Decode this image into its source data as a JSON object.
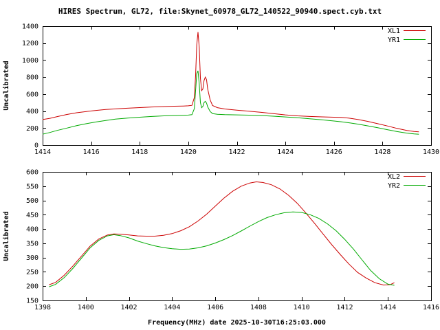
{
  "header": {
    "title": "HIRES Spectrum, GL72, file:Skynet_60978_GL72_140522_90940.spect.cyb.txt"
  },
  "colors": {
    "background": "#ffffff",
    "axis": "#000000",
    "xl": "#cc0000",
    "yr": "#00aa00"
  },
  "chart_data": [
    {
      "type": "line",
      "ylabel": "Uncalibrated",
      "xlim": [
        1414,
        1430
      ],
      "ylim": [
        0,
        1400
      ],
      "xtick_step": 2,
      "ytick_step": 200,
      "grid": false,
      "legend_position": "top-right",
      "series": [
        {
          "name": "XL1",
          "color": "#cc0000",
          "points": [
            [
              1414.0,
              300
            ],
            [
              1414.3,
              315
            ],
            [
              1414.6,
              335
            ],
            [
              1415.0,
              360
            ],
            [
              1415.4,
              380
            ],
            [
              1415.8,
              395
            ],
            [
              1416.2,
              408
            ],
            [
              1416.6,
              418
            ],
            [
              1417.0,
              426
            ],
            [
              1417.5,
              434
            ],
            [
              1418.0,
              441
            ],
            [
              1418.5,
              448
            ],
            [
              1419.0,
              453
            ],
            [
              1419.4,
              457
            ],
            [
              1419.8,
              460
            ],
            [
              1420.0,
              462
            ],
            [
              1420.15,
              468
            ],
            [
              1420.25,
              560
            ],
            [
              1420.3,
              820
            ],
            [
              1420.35,
              1180
            ],
            [
              1420.4,
              1330
            ],
            [
              1420.45,
              1150
            ],
            [
              1420.5,
              790
            ],
            [
              1420.55,
              640
            ],
            [
              1420.6,
              660
            ],
            [
              1420.65,
              760
            ],
            [
              1420.7,
              800
            ],
            [
              1420.75,
              770
            ],
            [
              1420.8,
              660
            ],
            [
              1420.9,
              530
            ],
            [
              1421.0,
              465
            ],
            [
              1421.2,
              440
            ],
            [
              1421.5,
              425
            ],
            [
              1422.0,
              410
            ],
            [
              1422.5,
              398
            ],
            [
              1423.0,
              385
            ],
            [
              1423.5,
              370
            ],
            [
              1424.0,
              355
            ],
            [
              1424.5,
              344
            ],
            [
              1425.0,
              337
            ],
            [
              1425.5,
              332
            ],
            [
              1426.0,
              328
            ],
            [
              1426.3,
              325
            ],
            [
              1426.6,
              318
            ],
            [
              1427.0,
              300
            ],
            [
              1427.4,
              278
            ],
            [
              1427.8,
              252
            ],
            [
              1428.2,
              225
            ],
            [
              1428.6,
              196
            ],
            [
              1429.0,
              172
            ],
            [
              1429.3,
              160
            ],
            [
              1429.5,
              155
            ]
          ]
        },
        {
          "name": "YR1",
          "color": "#00aa00",
          "points": [
            [
              1414.0,
              128
            ],
            [
              1414.3,
              148
            ],
            [
              1414.6,
              172
            ],
            [
              1415.0,
              200
            ],
            [
              1415.4,
              228
            ],
            [
              1415.8,
              252
            ],
            [
              1416.2,
              272
            ],
            [
              1416.6,
              290
            ],
            [
              1417.0,
              305
            ],
            [
              1417.5,
              318
            ],
            [
              1418.0,
              328
            ],
            [
              1418.5,
              337
            ],
            [
              1419.0,
              344
            ],
            [
              1419.4,
              348
            ],
            [
              1419.8,
              351
            ],
            [
              1420.0,
              353
            ],
            [
              1420.15,
              358
            ],
            [
              1420.25,
              430
            ],
            [
              1420.3,
              640
            ],
            [
              1420.35,
              840
            ],
            [
              1420.4,
              875
            ],
            [
              1420.45,
              720
            ],
            [
              1420.5,
              500
            ],
            [
              1420.55,
              440
            ],
            [
              1420.6,
              455
            ],
            [
              1420.65,
              500
            ],
            [
              1420.7,
              515
            ],
            [
              1420.75,
              495
            ],
            [
              1420.8,
              450
            ],
            [
              1420.9,
              395
            ],
            [
              1421.0,
              370
            ],
            [
              1421.2,
              362
            ],
            [
              1421.5,
              358
            ],
            [
              1422.0,
              355
            ],
            [
              1422.5,
              352
            ],
            [
              1423.0,
              347
            ],
            [
              1423.5,
              340
            ],
            [
              1424.0,
              331
            ],
            [
              1424.5,
              321
            ],
            [
              1425.0,
              310
            ],
            [
              1425.5,
              297
            ],
            [
              1426.0,
              283
            ],
            [
              1426.3,
              274
            ],
            [
              1426.6,
              263
            ],
            [
              1427.0,
              246
            ],
            [
              1427.4,
              226
            ],
            [
              1427.8,
              204
            ],
            [
              1428.2,
              181
            ],
            [
              1428.6,
              159
            ],
            [
              1429.0,
              141
            ],
            [
              1429.3,
              132
            ],
            [
              1429.5,
              128
            ]
          ]
        }
      ]
    },
    {
      "type": "line",
      "ylabel": "Uncalibrated",
      "xlabel": "Frequency(MHz) date 2025-10-30T16:25:03.000",
      "xlim": [
        1398,
        1416
      ],
      "ylim": [
        150,
        600
      ],
      "xtick_step": 2,
      "ytick_step": 50,
      "grid": false,
      "legend_position": "top-right",
      "series": [
        {
          "name": "XL2",
          "color": "#cc0000",
          "points": [
            [
              1398.3,
              205
            ],
            [
              1398.6,
              213
            ],
            [
              1399.0,
              238
            ],
            [
              1399.4,
              270
            ],
            [
              1399.8,
              305
            ],
            [
              1400.2,
              340
            ],
            [
              1400.6,
              365
            ],
            [
              1401.0,
              379
            ],
            [
              1401.3,
              383
            ],
            [
              1401.6,
              382
            ],
            [
              1402.0,
              379
            ],
            [
              1402.4,
              376
            ],
            [
              1402.8,
              375
            ],
            [
              1403.2,
              375
            ],
            [
              1403.6,
              378
            ],
            [
              1404.0,
              384
            ],
            [
              1404.4,
              394
            ],
            [
              1404.8,
              408
            ],
            [
              1405.2,
              428
            ],
            [
              1405.6,
              452
            ],
            [
              1406.0,
              480
            ],
            [
              1406.4,
              508
            ],
            [
              1406.8,
              532
            ],
            [
              1407.2,
              550
            ],
            [
              1407.6,
              561
            ],
            [
              1407.9,
              565
            ],
            [
              1408.2,
              563
            ],
            [
              1408.6,
              555
            ],
            [
              1409.0,
              540
            ],
            [
              1409.4,
              518
            ],
            [
              1409.8,
              490
            ],
            [
              1410.2,
              456
            ],
            [
              1410.6,
              420
            ],
            [
              1411.0,
              382
            ],
            [
              1411.4,
              345
            ],
            [
              1411.8,
              310
            ],
            [
              1412.2,
              277
            ],
            [
              1412.6,
              248
            ],
            [
              1413.0,
              228
            ],
            [
              1413.4,
              212
            ],
            [
              1413.8,
              204
            ],
            [
              1414.1,
              205
            ],
            [
              1414.3,
              212
            ]
          ]
        },
        {
          "name": "YR2",
          "color": "#00aa00",
          "points": [
            [
              1398.3,
              198
            ],
            [
              1398.6,
              206
            ],
            [
              1399.0,
              230
            ],
            [
              1399.4,
              262
            ],
            [
              1399.8,
              298
            ],
            [
              1400.2,
              334
            ],
            [
              1400.6,
              360
            ],
            [
              1401.0,
              376
            ],
            [
              1401.3,
              380
            ],
            [
              1401.6,
              377
            ],
            [
              1402.0,
              369
            ],
            [
              1402.4,
              358
            ],
            [
              1402.8,
              349
            ],
            [
              1403.2,
              341
            ],
            [
              1403.6,
              335
            ],
            [
              1404.0,
              331
            ],
            [
              1404.4,
              329
            ],
            [
              1404.8,
              330
            ],
            [
              1405.2,
              334
            ],
            [
              1405.6,
              341
            ],
            [
              1406.0,
              351
            ],
            [
              1406.4,
              363
            ],
            [
              1406.8,
              377
            ],
            [
              1407.2,
              393
            ],
            [
              1407.6,
              410
            ],
            [
              1408.0,
              426
            ],
            [
              1408.4,
              440
            ],
            [
              1408.8,
              450
            ],
            [
              1409.2,
              457
            ],
            [
              1409.6,
              460
            ],
            [
              1410.0,
              458
            ],
            [
              1410.4,
              450
            ],
            [
              1410.8,
              437
            ],
            [
              1411.2,
              418
            ],
            [
              1411.6,
              394
            ],
            [
              1412.0,
              364
            ],
            [
              1412.4,
              330
            ],
            [
              1412.8,
              292
            ],
            [
              1413.2,
              255
            ],
            [
              1413.6,
              226
            ],
            [
              1414.0,
              207
            ],
            [
              1414.3,
              203
            ]
          ]
        }
      ]
    }
  ]
}
